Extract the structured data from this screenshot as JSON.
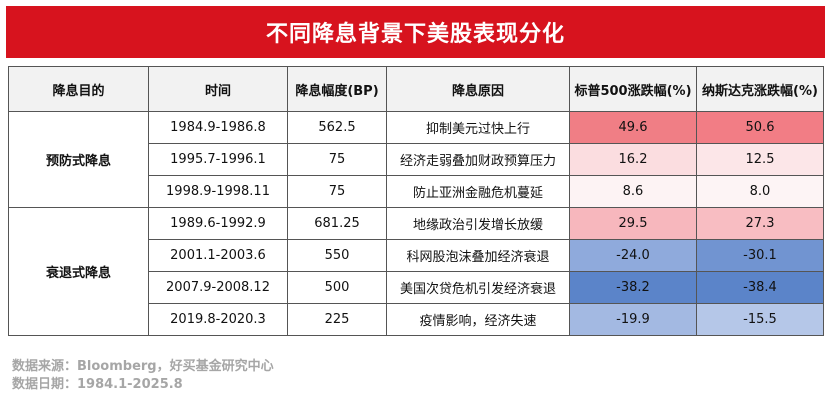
{
  "title": "不同降息背景下美股表现分化",
  "table": {
    "headers": [
      "降息目的",
      "时间",
      "降息幅度(BP)",
      "降息原因",
      "标普500涨跌幅(%)",
      "纳斯达克涨跌幅(%)"
    ],
    "groups": [
      {
        "name": "预防式降息",
        "rows": [
          {
            "time": "1984.9-1986.8",
            "bp": "562.5",
            "reason": "抑制美元过快上行",
            "sp": "49.6",
            "nq": "50.6",
            "sp_color": "#f07e85",
            "nq_color": "#f27d85"
          },
          {
            "time": "1995.7-1996.1",
            "bp": "75",
            "reason": "经济走弱叠加财政预算压力",
            "sp": "16.2",
            "nq": "12.5",
            "sp_color": "#fbdde0",
            "nq_color": "#fce6e8"
          },
          {
            "time": "1998.9-1998.11",
            "bp": "75",
            "reason": "防止亚洲金融危机蔓延",
            "sp": "8.6",
            "nq": "8.0",
            "sp_color": "#fdf3f4",
            "nq_color": "#fdf4f5"
          }
        ]
      },
      {
        "name": "衰退式降息",
        "rows": [
          {
            "time": "1989.6-1992.9",
            "bp": "681.25",
            "reason": "地缘政治引发增长放缓",
            "sp": "29.5",
            "nq": "27.3",
            "sp_color": "#f7b7bd",
            "nq_color": "#f8bdc2"
          },
          {
            "time": "2001.1-2003.6",
            "bp": "550",
            "reason": "科网股泡沫叠加经济衰退",
            "sp": "-24.0",
            "nq": "-30.1",
            "sp_color": "#8faadc",
            "nq_color": "#7194d1"
          },
          {
            "time": "2007.9-2008.12",
            "bp": "500",
            "reason": "美国次贷危机引发经济衰退",
            "sp": "-38.2",
            "nq": "-38.4",
            "sp_color": "#5b84c9",
            "nq_color": "#5b84c9"
          },
          {
            "time": "2019.8-2020.3",
            "bp": "225",
            "reason": "疫情影响，经济失速",
            "sp": "-19.9",
            "nq": "-15.5",
            "sp_color": "#a3b9e2",
            "nq_color": "#b5c7e8"
          }
        ]
      }
    ]
  },
  "footer": {
    "source": "数据来源：Bloomberg，好买基金研究中心",
    "date": "数据日期：1984.1-2025.8"
  }
}
